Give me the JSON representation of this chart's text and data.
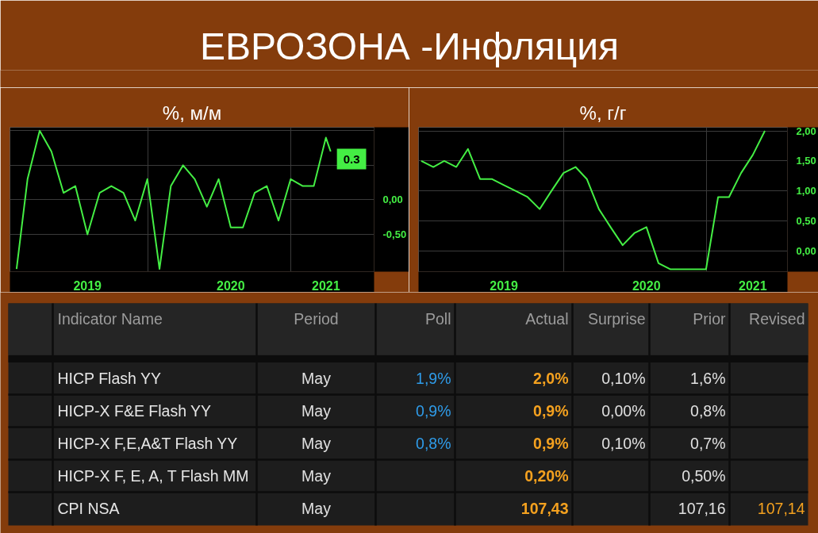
{
  "chart_data": [
    {
      "type": "other",
      "title": "ЕВРОЗОНА -Инфляция"
    },
    {
      "type": "line",
      "title": "%, м/м",
      "color": "#44ee44",
      "grid": true,
      "annotations": [
        "0.3"
      ],
      "x": [
        "2019-01-31",
        "2019-02-28",
        "2019-03-31",
        "2019-04-30",
        "2019-05-31",
        "2019-06-30",
        "2019-07-31",
        "2019-08-31",
        "2019-09-30",
        "2019-10-31",
        "2019-11-30",
        "2019-12-31",
        "2020-01-31",
        "2020-02-29",
        "2020-03-31",
        "2020-04-30",
        "2020-05-31",
        "2020-06-30",
        "2020-07-31",
        "2020-08-31",
        "2020-09-30",
        "2020-10-31",
        "2020-11-30",
        "2020-12-31",
        "2021-01-31",
        "2021-02-28",
        "2021-03-31",
        "2021-04-12"
      ],
      "values": [
        -1.0,
        0.3,
        1.0,
        0.7,
        0.1,
        0.2,
        -0.5,
        0.1,
        0.2,
        0.1,
        -0.3,
        0.3,
        -1.0,
        0.2,
        0.5,
        0.3,
        -0.1,
        0.3,
        -0.4,
        -0.4,
        0.1,
        0.2,
        -0.3,
        0.3,
        0.2,
        0.2,
        0.9,
        0.7
      ],
      "xlim": [
        "2019-01-14",
        "2021-08-01"
      ],
      "ylim": [
        -1.04,
        1.05
      ],
      "xticks": [
        {
          "value": "2020-01-01",
          "label": null
        },
        {
          "value": "2021-01-01",
          "label": null
        },
        {
          "value": "2019-07-31",
          "label": "2019"
        },
        {
          "value": "2020-07-31",
          "label": "2020"
        },
        {
          "value": "2021-03-31",
          "label": "2021"
        }
      ],
      "yticks": [
        {
          "value": 1.0,
          "label": null
        },
        {
          "value": 0.5,
          "label": null
        },
        {
          "value": 0,
          "label": "0,00"
        },
        {
          "value": -0.5,
          "label": "-0,50"
        }
      ]
    },
    {
      "type": "line",
      "title": "%, г/г",
      "color": "#44ee44",
      "grid": true,
      "x": [
        "2018-12-31",
        "2019-01-31",
        "2019-02-28",
        "2019-03-31",
        "2019-04-30",
        "2019-05-31",
        "2019-06-30",
        "2019-07-31",
        "2019-08-31",
        "2019-09-30",
        "2019-10-31",
        "2019-11-30",
        "2019-12-31",
        "2020-01-31",
        "2020-02-29",
        "2020-03-31",
        "2020-04-30",
        "2020-05-31",
        "2020-06-30",
        "2020-07-31",
        "2020-08-31",
        "2020-09-30",
        "2020-10-31",
        "2020-11-30",
        "2020-12-31",
        "2021-01-31",
        "2021-02-28",
        "2021-03-31",
        "2021-04-30",
        "2021-05-31"
      ],
      "values": [
        1.5,
        1.4,
        1.5,
        1.4,
        1.7,
        1.2,
        1.2,
        1.1,
        1.0,
        0.9,
        0.7,
        1.0,
        1.3,
        1.4,
        1.2,
        0.7,
        0.4,
        0.1,
        0.3,
        0.4,
        -0.2,
        -0.3,
        -0.3,
        -0.3,
        -0.3,
        0.9,
        0.9,
        1.3,
        1.6,
        2.0
      ],
      "xlim": [
        "2018-12-24",
        "2021-07-28"
      ],
      "ylim": [
        -0.34,
        2.06
      ],
      "xticks": [
        {
          "value": "2020-01-01",
          "label": null
        },
        {
          "value": "2021-01-01",
          "label": null
        },
        {
          "value": "2019-07-31",
          "label": "2019"
        },
        {
          "value": "2020-07-31",
          "label": "2020"
        },
        {
          "value": "2021-04-30",
          "label": "2021"
        }
      ],
      "yticks": [
        {
          "value": 0,
          "label": "0,00"
        },
        {
          "value": 0.5,
          "label": "0,50"
        },
        {
          "value": 1.0,
          "label": "1,00"
        },
        {
          "value": 1.5,
          "label": "1,50"
        },
        {
          "value": 2.0,
          "label": "2,00"
        }
      ]
    },
    {
      "type": "other",
      "categories": [
        "Indicator Name",
        "Period",
        "Poll",
        "Actual",
        "Surprise",
        "Prior",
        "Revised"
      ],
      "y_categories": [
        "HICP Flash YY",
        "HICP-X F&E Flash YY",
        "HICP-X F,E,A&T Flash YY",
        "HICP-X F, E, A, T Flash MM",
        "CPI NSA"
      ],
      "cell_labels": [
        [
          "May",
          "1,9%",
          "2,0%",
          "0,10%",
          "1,6%",
          null
        ],
        [
          "May",
          "0,9%",
          "0,9%",
          "0,00%",
          "0,8%",
          null
        ],
        [
          "May",
          "0,8%",
          "0,9%",
          "0,10%",
          "0,7%",
          null
        ],
        [
          "May",
          null,
          "0,20%",
          null,
          "0,50%",
          null
        ],
        [
          "May",
          null,
          "107,43",
          null,
          "107,16",
          "107,14"
        ]
      ]
    }
  ]
}
